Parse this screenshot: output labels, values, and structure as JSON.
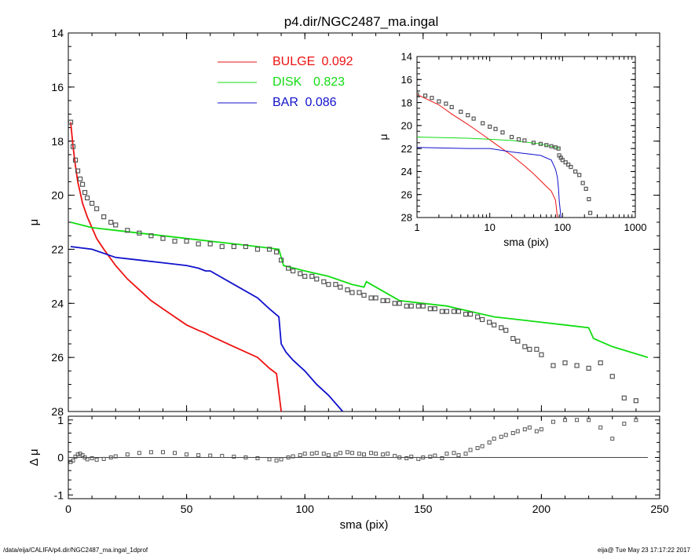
{
  "title": "p4.dir/NGC2487_ma.ingal",
  "footer": {
    "left": "/data/eija/CALIFA/p4.dir/NGC2487_ma.ingal_1dprof",
    "right": "eija@  Tue May 23 17:17:22 2017"
  },
  "colors": {
    "bulge": "#ee1111",
    "disk": "#11dd11",
    "bar": "#1111cc",
    "data": "#555555"
  },
  "chart_data": [
    {
      "name": "main",
      "type": "line",
      "title": "p4.dir/NGC2487_ma.ingal",
      "xlabel": "",
      "ylabel": "μ",
      "xlim": [
        0,
        250
      ],
      "ylim": [
        28,
        14
      ],
      "y_inverted": true,
      "xticks": [
        "0",
        "50",
        "100",
        "150",
        "200",
        "250"
      ],
      "yticks": [
        "14",
        "16",
        "18",
        "20",
        "22",
        "24",
        "26",
        "28"
      ],
      "legend": [
        {
          "name": "BULGE",
          "value": "0.092",
          "color": "#ee1111"
        },
        {
          "name": "DISK",
          "value": "0.823",
          "color": "#11dd11"
        },
        {
          "name": "BAR",
          "value": "0.086",
          "color": "#1111cc"
        }
      ],
      "series": [
        {
          "name": "BULGE",
          "x": [
            1,
            2,
            3,
            4,
            5,
            6,
            8,
            10,
            12,
            15,
            20,
            25,
            30,
            35,
            40,
            45,
            50,
            55,
            58,
            60,
            70,
            80,
            85,
            88,
            90
          ],
          "y": [
            17.3,
            18.2,
            18.9,
            19.5,
            19.9,
            20.3,
            20.8,
            21.2,
            21.6,
            22.0,
            22.6,
            23.1,
            23.5,
            23.9,
            24.2,
            24.5,
            24.8,
            25.0,
            25.1,
            25.2,
            25.6,
            26.0,
            26.4,
            26.6,
            28.0
          ]
        },
        {
          "name": "DISK",
          "x": [
            1,
            10,
            20,
            30,
            40,
            50,
            60,
            70,
            80,
            89,
            90,
            91,
            100,
            110,
            120,
            125,
            126,
            140,
            150,
            160,
            170,
            180,
            190,
            200,
            210,
            220,
            222,
            230,
            245
          ],
          "y": [
            21.0,
            21.2,
            21.3,
            21.4,
            21.5,
            21.6,
            21.7,
            21.8,
            21.9,
            22.0,
            22.3,
            22.6,
            22.8,
            23.0,
            23.3,
            23.4,
            23.2,
            23.9,
            24.0,
            24.1,
            24.3,
            24.5,
            24.6,
            24.7,
            24.8,
            24.9,
            25.3,
            25.6,
            26.0
          ]
        },
        {
          "name": "BAR",
          "x": [
            1,
            10,
            20,
            30,
            40,
            50,
            55,
            58,
            60,
            70,
            80,
            85,
            89,
            90,
            92,
            95,
            100,
            105,
            110,
            114,
            116
          ],
          "y": [
            21.9,
            22.0,
            22.3,
            22.4,
            22.5,
            22.6,
            22.7,
            22.8,
            22.8,
            23.3,
            23.8,
            24.2,
            24.5,
            25.5,
            25.8,
            26.1,
            26.5,
            27.0,
            27.4,
            27.8,
            28.0
          ]
        },
        {
          "name": "data",
          "style": "points",
          "x": [
            1,
            2,
            3,
            4,
            5,
            6,
            7,
            8,
            10,
            12,
            15,
            18,
            20,
            25,
            30,
            35,
            40,
            45,
            50,
            55,
            60,
            65,
            70,
            75,
            80,
            85,
            88,
            90,
            93,
            95,
            98,
            100,
            103,
            105,
            108,
            110,
            113,
            115,
            118,
            120,
            123,
            125,
            128,
            130,
            133,
            135,
            138,
            140,
            143,
            145,
            148,
            150,
            153,
            155,
            158,
            160,
            163,
            165,
            168,
            170,
            173,
            175,
            178,
            180,
            183,
            185,
            188,
            190,
            193,
            195,
            198,
            200,
            205,
            210,
            215,
            220,
            225,
            230,
            235,
            240
          ],
          "y": [
            17.3,
            18.2,
            18.7,
            19.1,
            19.4,
            19.6,
            19.9,
            20.1,
            20.3,
            20.5,
            20.8,
            21.0,
            21.1,
            21.3,
            21.4,
            21.5,
            21.6,
            21.7,
            21.7,
            21.8,
            21.8,
            21.9,
            21.9,
            21.9,
            22.0,
            22.0,
            22.1,
            22.4,
            22.7,
            22.8,
            22.9,
            23.0,
            23.0,
            23.1,
            23.2,
            23.3,
            23.3,
            23.4,
            23.5,
            23.6,
            23.6,
            23.7,
            23.8,
            23.8,
            23.9,
            23.9,
            24.0,
            24.0,
            24.1,
            24.1,
            24.1,
            24.1,
            24.2,
            24.2,
            24.3,
            24.3,
            24.3,
            24.3,
            24.4,
            24.4,
            24.5,
            24.6,
            24.7,
            24.8,
            24.9,
            25.0,
            25.3,
            25.4,
            25.6,
            25.7,
            25.7,
            25.9,
            26.3,
            26.2,
            26.3,
            26.4,
            26.2,
            26.7,
            27.5,
            27.6
          ]
        }
      ]
    },
    {
      "name": "residual",
      "type": "scatter",
      "xlabel": "sma (pix)",
      "ylabel": "Δ μ",
      "xlim": [
        0,
        250
      ],
      "ylim": [
        -1.1,
        1.1
      ],
      "xticks": [
        "0",
        "50",
        "100",
        "150",
        "200",
        "250"
      ],
      "yticks": [
        "1",
        "0",
        "-1"
      ],
      "points": {
        "x": [
          1,
          2,
          3,
          4,
          5,
          6,
          7,
          8,
          10,
          12,
          15,
          18,
          20,
          25,
          30,
          35,
          40,
          45,
          50,
          55,
          60,
          65,
          70,
          75,
          80,
          85,
          88,
          90,
          93,
          95,
          98,
          100,
          103,
          105,
          108,
          110,
          113,
          115,
          118,
          120,
          123,
          125,
          128,
          130,
          133,
          135,
          138,
          140,
          143,
          145,
          148,
          150,
          153,
          155,
          158,
          160,
          163,
          165,
          168,
          170,
          173,
          175,
          178,
          180,
          183,
          185,
          188,
          190,
          193,
          195,
          198,
          200,
          205,
          210,
          215,
          220,
          225,
          230,
          235,
          240
        ],
        "y": [
          -0.12,
          -0.08,
          0.02,
          0.08,
          0.1,
          0.06,
          0.0,
          -0.05,
          -0.02,
          -0.06,
          -0.04,
          0.0,
          0.03,
          0.08,
          0.12,
          0.14,
          0.14,
          0.12,
          0.08,
          0.06,
          0.05,
          0.04,
          0.02,
          0.0,
          -0.02,
          -0.05,
          -0.08,
          -0.05,
          0.0,
          0.03,
          0.06,
          0.1,
          0.1,
          0.12,
          0.1,
          0.06,
          0.08,
          0.12,
          0.14,
          0.12,
          0.1,
          0.08,
          0.12,
          0.1,
          0.08,
          0.1,
          0.04,
          0.0,
          -0.02,
          0.02,
          -0.04,
          0.0,
          0.02,
          0.05,
          -0.02,
          0.1,
          0.12,
          0.06,
          0.1,
          0.2,
          0.25,
          0.3,
          0.4,
          0.5,
          0.55,
          0.6,
          0.65,
          0.7,
          0.75,
          0.8,
          0.7,
          0.75,
          0.95,
          1.0,
          1.0,
          1.0,
          0.8,
          0.5,
          0.9,
          1.0
        ]
      }
    },
    {
      "name": "inset",
      "type": "line",
      "xlabel": "sma (pix)",
      "ylabel": "μ",
      "xscale": "log",
      "xlim": [
        1,
        1000
      ],
      "ylim": [
        28,
        14
      ],
      "xticks": [
        "1",
        "10",
        "100",
        "1000"
      ],
      "yticks": [
        "14",
        "16",
        "18",
        "20",
        "22",
        "24",
        "26",
        "28"
      ],
      "series": [
        {
          "name": "BULGE",
          "x": [
            1,
            2,
            3,
            5,
            8,
            12,
            20,
            30,
            40,
            50,
            60,
            70,
            80,
            85
          ],
          "y": [
            17.3,
            18.2,
            19.0,
            19.9,
            20.8,
            21.6,
            22.6,
            23.5,
            24.2,
            24.8,
            25.3,
            25.7,
            26.5,
            28.0
          ]
        },
        {
          "name": "DISK",
          "x": [
            1,
            5,
            10,
            20,
            50,
            80,
            90
          ],
          "y": [
            21.0,
            21.1,
            21.2,
            21.3,
            21.6,
            21.9,
            22.0
          ]
        },
        {
          "name": "BAR",
          "x": [
            1,
            5,
            10,
            20,
            50,
            70,
            80,
            85,
            88,
            90,
            95
          ],
          "y": [
            21.9,
            22.0,
            22.0,
            22.3,
            22.6,
            23.0,
            23.8,
            24.5,
            25.5,
            26.5,
            28.0
          ]
        },
        {
          "name": "data",
          "style": "points",
          "x": [
            1,
            1.3,
            1.6,
            2,
            2.5,
            3,
            4,
            5,
            6,
            8,
            10,
            12,
            15,
            20,
            25,
            30,
            40,
            50,
            60,
            70,
            80,
            88,
            90,
            95,
            100,
            110,
            120,
            130,
            150,
            170,
            190,
            210,
            230,
            240
          ],
          "y": [
            17.3,
            17.4,
            17.6,
            17.9,
            18.1,
            18.4,
            18.8,
            19.1,
            19.4,
            19.8,
            20.1,
            20.3,
            20.6,
            21.0,
            21.2,
            21.3,
            21.5,
            21.6,
            21.7,
            21.8,
            21.9,
            22.0,
            22.6,
            22.8,
            23.0,
            23.2,
            23.4,
            23.6,
            24.0,
            24.3,
            25.0,
            25.5,
            26.4,
            27.6
          ]
        }
      ]
    }
  ]
}
